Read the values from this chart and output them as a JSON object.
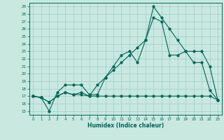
{
  "xlabel": "Humidex (Indice chaleur)",
  "bg_color": "#c8e8e0",
  "line_color": "#006655",
  "grid_color": "#a0cccc",
  "xlim": [
    -0.5,
    23.5
  ],
  "ylim": [
    14.5,
    29.5
  ],
  "yticks": [
    15,
    16,
    17,
    18,
    19,
    20,
    21,
    22,
    23,
    24,
    25,
    26,
    27,
    28,
    29
  ],
  "xticks": [
    0,
    1,
    2,
    3,
    4,
    5,
    6,
    7,
    8,
    9,
    10,
    11,
    12,
    13,
    14,
    15,
    16,
    17,
    18,
    19,
    20,
    21,
    22,
    23
  ],
  "line1_x": [
    0,
    1,
    2,
    3,
    4,
    5,
    6,
    7,
    8,
    9,
    10,
    11,
    12,
    13,
    14,
    15,
    16,
    17,
    18,
    19,
    20,
    21,
    22,
    23
  ],
  "line1_y": [
    17.0,
    16.8,
    15.0,
    17.5,
    18.5,
    18.5,
    18.5,
    17.2,
    17.2,
    19.5,
    21.0,
    22.5,
    23.0,
    21.5,
    24.5,
    29.0,
    27.5,
    26.0,
    24.5,
    23.0,
    21.5,
    21.5,
    17.8,
    16.5
  ],
  "line2_x": [
    0,
    1,
    2,
    3,
    4,
    5,
    6,
    7,
    8,
    9,
    10,
    11,
    12,
    13,
    14,
    15,
    16,
    17,
    18,
    19,
    20,
    21,
    22,
    23
  ],
  "line2_y": [
    17.0,
    16.8,
    16.2,
    17.0,
    17.5,
    17.2,
    17.2,
    17.0,
    17.0,
    17.0,
    17.0,
    17.0,
    17.0,
    17.0,
    17.0,
    17.0,
    17.0,
    17.0,
    17.0,
    17.0,
    17.0,
    17.0,
    17.0,
    16.5
  ],
  "line3_x": [
    0,
    1,
    2,
    3,
    4,
    5,
    6,
    7,
    8,
    9,
    10,
    11,
    12,
    13,
    14,
    15,
    16,
    17,
    18,
    19,
    20,
    21,
    22,
    23
  ],
  "line3_y": [
    17.0,
    16.8,
    16.2,
    17.0,
    17.5,
    17.2,
    17.5,
    17.0,
    18.5,
    19.5,
    20.5,
    21.5,
    22.5,
    23.5,
    24.5,
    27.5,
    27.0,
    22.5,
    22.5,
    23.0,
    23.0,
    23.0,
    21.0,
    16.5
  ]
}
